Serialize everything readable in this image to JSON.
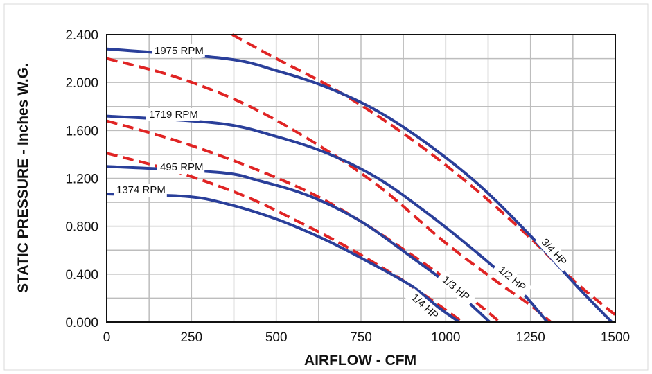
{
  "chart_data": {
    "type": "line",
    "xlabel": "AIRFLOW - CFM",
    "ylabel": "STATIC PRESSURE - Inches W.G.",
    "xlim": [
      0,
      1500
    ],
    "ylim": [
      0,
      2.4
    ],
    "x_ticks": [
      0,
      250,
      500,
      750,
      1000,
      1250,
      1500
    ],
    "x_tick_labels": [
      "0",
      "250",
      "500",
      "750",
      "1000",
      "1250",
      "1500"
    ],
    "y_ticks": [
      0,
      0.4,
      0.8,
      1.2,
      1.6,
      2.0,
      2.4
    ],
    "y_tick_labels": [
      "0.000",
      "0.400",
      "0.800",
      "1.200",
      "1.600",
      "2.000",
      "2.400"
    ],
    "grid": true,
    "colors": {
      "rpm_curve": "#2a3f9a",
      "hp_curve": "#e02424",
      "grid": "#bdbdbd",
      "frame": "#111111"
    },
    "rpm_curves": [
      {
        "label": "1975 RPM",
        "x": [
          0,
          350,
          500,
          650,
          800,
          950,
          1100,
          1250,
          1400,
          1490
        ],
        "y": [
          2.28,
          2.2,
          2.1,
          1.96,
          1.76,
          1.48,
          1.14,
          0.72,
          0.26,
          0.0
        ]
      },
      {
        "label": "1719 RPM",
        "x": [
          0,
          330,
          500,
          650,
          800,
          950,
          1100,
          1220,
          1300
        ],
        "y": [
          1.72,
          1.66,
          1.55,
          1.41,
          1.2,
          0.9,
          0.56,
          0.26,
          0.0
        ]
      },
      {
        "label": "495 RPM",
        "x": [
          0,
          330,
          450,
          600,
          750,
          900,
          1000,
          1080,
          1130
        ],
        "y": [
          1.3,
          1.25,
          1.18,
          1.05,
          0.84,
          0.54,
          0.33,
          0.13,
          0.0
        ]
      },
      {
        "label": "1374 RPM",
        "x": [
          0,
          230,
          350,
          500,
          650,
          780,
          900,
          980,
          1040
        ],
        "y": [
          1.07,
          1.05,
          0.99,
          0.86,
          0.68,
          0.49,
          0.3,
          0.12,
          0.0
        ]
      }
    ],
    "hp_curves": [
      {
        "label": "3/4 HP",
        "x": [
          370,
          500,
          650,
          800,
          950,
          1100,
          1250,
          1380,
          1500
        ],
        "y": [
          2.4,
          2.2,
          1.98,
          1.72,
          1.42,
          1.08,
          0.7,
          0.34,
          0.06
        ]
      },
      {
        "label": "1/2 HP",
        "x": [
          0,
          200,
          400,
          600,
          800,
          1000,
          1150,
          1250,
          1310
        ],
        "y": [
          2.2,
          2.05,
          1.83,
          1.52,
          1.14,
          0.66,
          0.34,
          0.14,
          0.0
        ]
      },
      {
        "label": "1/3 HP",
        "x": [
          0,
          200,
          400,
          600,
          750,
          900,
          1000,
          1100,
          1160
        ],
        "y": [
          1.68,
          1.52,
          1.32,
          1.08,
          0.84,
          0.56,
          0.36,
          0.14,
          0.0
        ]
      },
      {
        "label": "1/4 HP",
        "x": [
          0,
          200,
          400,
          550,
          700,
          850,
          950,
          1050
        ],
        "y": [
          1.41,
          1.26,
          1.06,
          0.86,
          0.64,
          0.39,
          0.2,
          0.0
        ]
      }
    ]
  }
}
